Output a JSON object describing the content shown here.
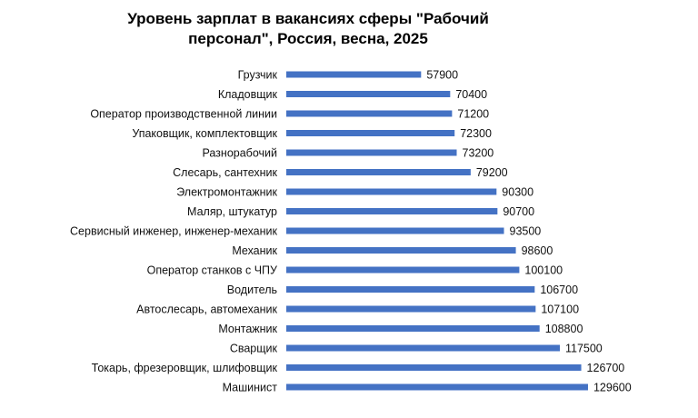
{
  "chart_data": {
    "type": "bar",
    "orientation": "horizontal",
    "title_lines": [
      "Уровень зарплат в вакансиях сферы \"Рабочий",
      "персонал\", Россия, весна, 2025"
    ],
    "categories": [
      "Грузчик",
      "Кладовщик",
      "Оператор производственной линии",
      "Упаковщик, комплектовщик",
      "Разнорабочий",
      "Слесарь, сантехник",
      "Электромонтажник",
      "Маляр, штукатур",
      "Сервисный инженер, инженер-механик",
      "Механик",
      "Оператор станков с ЧПУ",
      "Водитель",
      "Автослесарь, автомеханик",
      "Монтажник",
      "Сварщик",
      "Токарь, фрезеровщик, шлифовщик",
      "Машинист"
    ],
    "values": [
      57900,
      70400,
      71200,
      72300,
      73200,
      79200,
      90300,
      90700,
      93500,
      98600,
      100100,
      106700,
      107100,
      108800,
      117500,
      126700,
      129600
    ],
    "data_labels": [
      "57900",
      "70400",
      "71200",
      "72300",
      "73200",
      "79200",
      "90300",
      "90700",
      "93500",
      "98600",
      "100100",
      "106700",
      "107100",
      "108800",
      "117500",
      "126700",
      "129600"
    ],
    "xlim": [
      0,
      130000
    ],
    "bar_color": "#4472C4",
    "grid": false,
    "legend": "none"
  }
}
